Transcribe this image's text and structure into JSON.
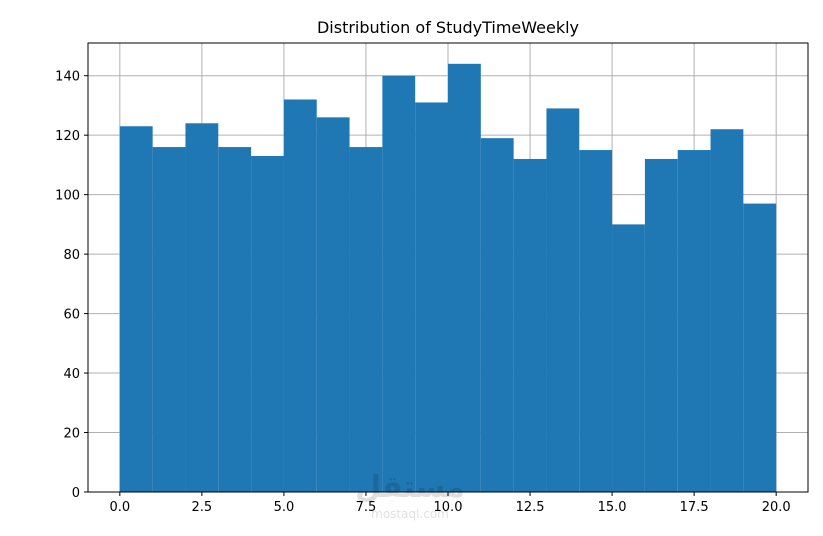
{
  "chart_data": {
    "type": "bar",
    "title": "Distribution of StudyTimeWeekly",
    "xlabel": "",
    "ylabel": "",
    "bin_edges": [
      0,
      1,
      2,
      3,
      4,
      5,
      6,
      7,
      8,
      9,
      10,
      11,
      12,
      13,
      14,
      15,
      16,
      17,
      18,
      19,
      20
    ],
    "values": [
      123,
      116,
      124,
      116,
      113,
      132,
      126,
      116,
      140,
      131,
      144,
      119,
      112,
      129,
      115,
      90,
      112,
      115,
      122,
      97
    ],
    "xlim": [
      -0.97,
      20.97
    ],
    "ylim": [
      0,
      151
    ],
    "xticks": [
      0,
      2.5,
      5,
      7.5,
      10,
      12.5,
      15,
      17.5,
      20
    ],
    "xtick_labels": [
      "0.0",
      "2.5",
      "5.0",
      "7.5",
      "10.0",
      "12.5",
      "15.0",
      "17.5",
      "20.0"
    ],
    "yticks": [
      0,
      20,
      40,
      60,
      80,
      100,
      120,
      140
    ],
    "ytick_labels": [
      "0",
      "20",
      "40",
      "60",
      "80",
      "100",
      "120",
      "140"
    ],
    "grid": true,
    "bar_color": "#1f77b4",
    "watermark": "mostaql.com"
  }
}
